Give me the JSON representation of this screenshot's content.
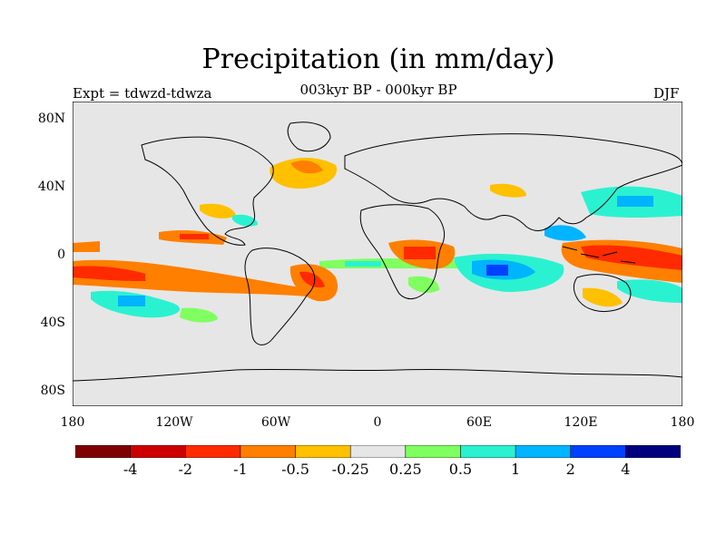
{
  "title": "Precipitation (in mm/day)",
  "subtitle": "003kyr BP - 000kyr BP",
  "experiment": "Expt = tdwzd-tdwza",
  "season": "DJF",
  "colors": {
    "land_ocean_background": "#e6e6e6",
    "coastline": "#000000",
    "colorbar": [
      "#7e0000",
      "#cc0000",
      "#ff2a00",
      "#ff7f00",
      "#ffc000",
      "#e6e6e6",
      "#80ff60",
      "#2af2d0",
      "#00b4ff",
      "#0040ff",
      "#00007e"
    ]
  },
  "map": {
    "projection": "cylindrical equidistant",
    "lat_labels": [
      "80N",
      "40N",
      "0",
      "40S",
      "80S"
    ],
    "lon_labels": [
      "180",
      "120W",
      "60W",
      "0",
      "60E",
      "120E",
      "180"
    ]
  },
  "colorbar": {
    "labels": [
      "-4",
      "-2",
      "-1",
      "-0.5",
      "-0.25",
      "0.25",
      "0.5",
      "1",
      "2",
      "4"
    ]
  }
}
